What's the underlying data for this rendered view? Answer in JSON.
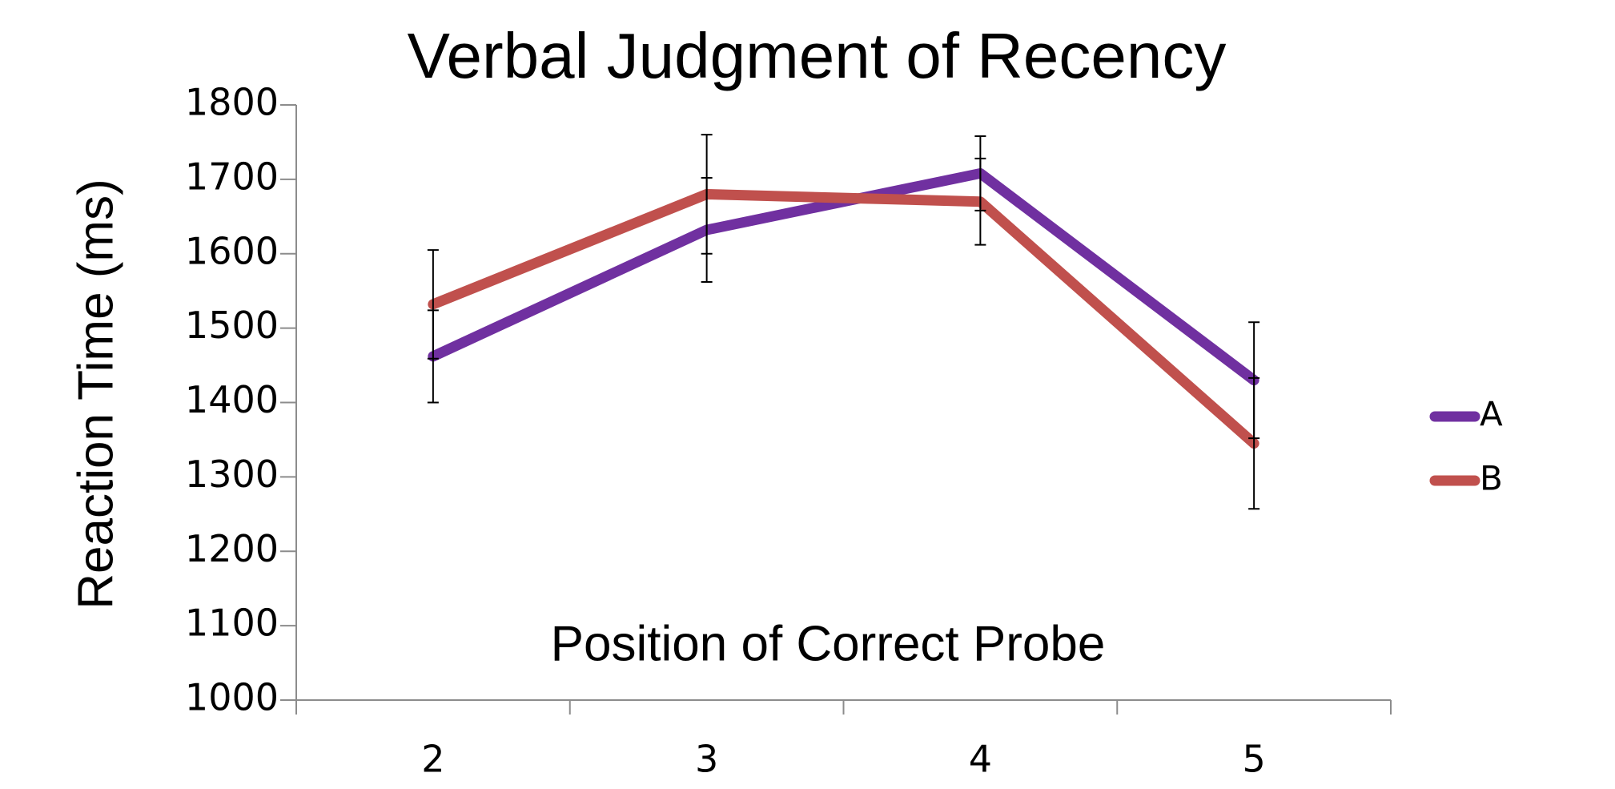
{
  "chart_data": {
    "type": "line",
    "title": "Verbal Judgment of Recency",
    "x_label": "Position of Correct Probe",
    "y_label": "Reaction Time (ms)",
    "categories": [
      "2",
      "3",
      "4",
      "5"
    ],
    "series": [
      {
        "name": "A",
        "color": "#7030a0",
        "values": [
          1462,
          1632,
          1708,
          1430
        ],
        "errors": [
          62,
          70,
          50,
          78
        ]
      },
      {
        "name": "B",
        "color": "#c0504d",
        "values": [
          1532,
          1680,
          1670,
          1345
        ],
        "errors": [
          73,
          80,
          58,
          88
        ]
      }
    ],
    "ylim": [
      1000,
      1800
    ],
    "yticks": [
      1000,
      1100,
      1200,
      1300,
      1400,
      1500,
      1600,
      1700,
      1800
    ],
    "legend": "right"
  }
}
